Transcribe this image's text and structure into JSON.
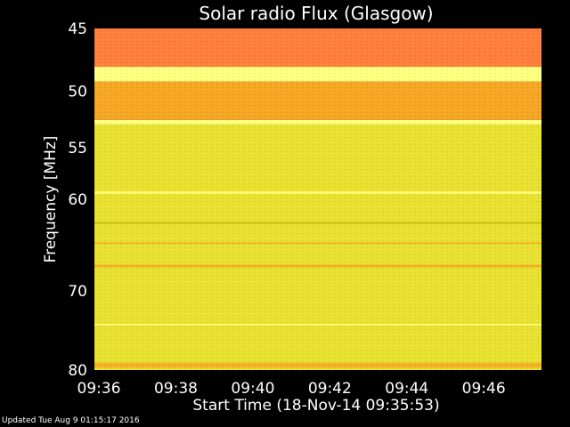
{
  "chart_data": {
    "type": "heatmap",
    "title": "Solar radio Flux (Glasgow)",
    "xlabel": "Start Time (18-Nov-14 09:35:53)",
    "ylabel": "Frequency [MHz]",
    "x_ticks": [
      "09:36",
      "09:38",
      "09:40",
      "09:42",
      "09:44",
      "09:46"
    ],
    "x_range": [
      "09:35:53",
      "09:47:30"
    ],
    "y_ticks": [
      45,
      50,
      55,
      60,
      70,
      80
    ],
    "y_range": [
      45,
      80
    ],
    "y_scale": "log",
    "colors": {
      "high": "#ff7f3a",
      "mid_high": "#f5a623",
      "mid": "#e9e12f",
      "low": "#c9c416",
      "bright_line": "#ffff80"
    },
    "bands": [
      {
        "from": 45,
        "to": 48.0,
        "level": "high"
      },
      {
        "from": 48.0,
        "to": 49.2,
        "level": "bright_line"
      },
      {
        "from": 49.2,
        "to": 52.5,
        "level": "mid_high"
      },
      {
        "from": 52.5,
        "to": 52.9,
        "level": "bright_line"
      },
      {
        "from": 52.9,
        "to": 80,
        "level": "mid"
      }
    ]
  },
  "footer": "Updated Tue Aug  9 01:15:17 2016"
}
